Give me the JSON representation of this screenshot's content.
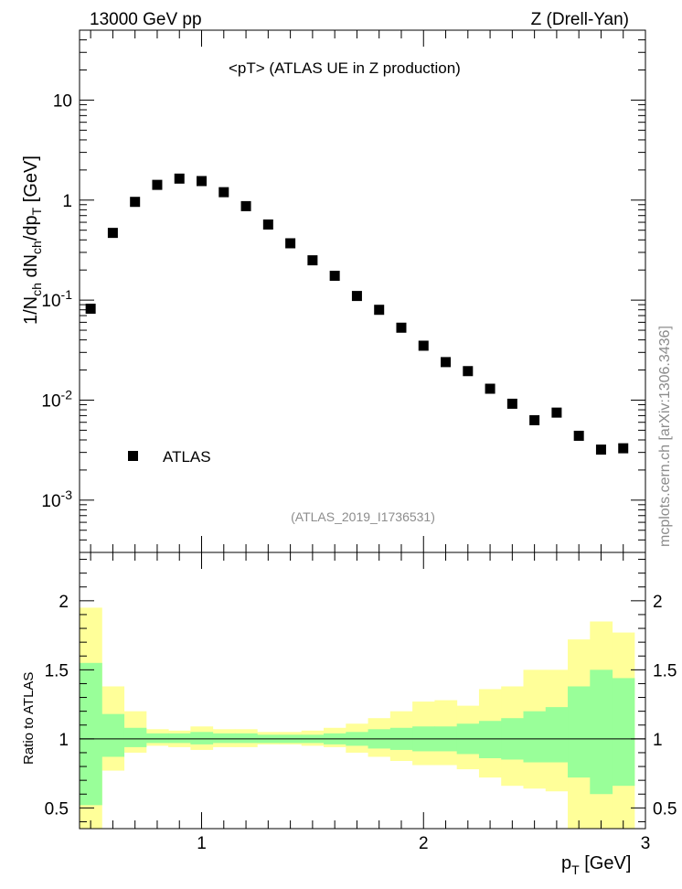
{
  "header": {
    "left": "13000 GeV pp",
    "right": "Z (Drell-Yan)"
  },
  "annotation": "<pT> (ATLAS UE in Z production)",
  "analysis_id": "(ATLAS_2019_I1736531)",
  "side_label": "mcplots.cern.ch [arXiv:1306.3436]",
  "legend": {
    "label": "ATLAS",
    "marker": "filled-square"
  },
  "colors": {
    "band_inner": "#99ff99",
    "band_outer": "#ffff99",
    "marker": "#000000"
  },
  "chart_data": [
    {
      "type": "scatter",
      "ylabel": "1/N_ch dN_ch/dp_T [GeV]",
      "xlabel": "p_T [GeV]",
      "yscale": "log",
      "xlim": [
        0.45,
        3.0
      ],
      "ylim": [
        0.0003,
        50
      ],
      "x_ticks": [
        "1",
        "2",
        "3"
      ],
      "y_ticks": [
        "10^-3",
        "10^-2",
        "10^-1",
        "1",
        "10"
      ],
      "legend_position": "bottom-left",
      "series": [
        {
          "name": "ATLAS",
          "x": [
            0.5,
            0.6,
            0.7,
            0.8,
            0.9,
            1.0,
            1.1,
            1.2,
            1.3,
            1.4,
            1.5,
            1.6,
            1.7,
            1.8,
            1.9,
            2.0,
            2.1,
            2.2,
            2.3,
            2.4,
            2.5,
            2.6,
            2.7,
            2.8,
            2.9
          ],
          "y": [
            0.082,
            0.47,
            0.96,
            1.42,
            1.64,
            1.55,
            1.2,
            0.87,
            0.57,
            0.37,
            0.25,
            0.175,
            0.11,
            0.08,
            0.053,
            0.035,
            0.024,
            0.0195,
            0.013,
            0.0092,
            0.0063,
            0.0075,
            0.0044,
            0.0032,
            0.0033
          ]
        }
      ]
    },
    {
      "type": "area",
      "ylabel": "Ratio to ATLAS",
      "xlabel": "p_T [GeV]",
      "xlim": [
        0.45,
        3.0
      ],
      "ylim": [
        0.35,
        2.35
      ],
      "y_ticks": [
        "0.5",
        "1",
        "1.5",
        "2"
      ],
      "bin_edges": [
        0.45,
        0.55,
        0.65,
        0.75,
        0.85,
        0.95,
        1.05,
        1.15,
        1.25,
        1.35,
        1.45,
        1.55,
        1.65,
        1.75,
        1.85,
        1.95,
        2.05,
        2.15,
        2.25,
        2.35,
        2.45,
        2.55,
        2.65,
        2.75,
        2.85,
        2.95
      ],
      "series": [
        {
          "name": "inner_hi",
          "values": [
            1.55,
            1.18,
            1.08,
            1.04,
            1.04,
            1.05,
            1.04,
            1.04,
            1.03,
            1.03,
            1.03,
            1.04,
            1.05,
            1.07,
            1.08,
            1.09,
            1.09,
            1.11,
            1.13,
            1.15,
            1.2,
            1.23,
            1.38,
            1.5,
            1.44
          ]
        },
        {
          "name": "inner_lo",
          "values": [
            0.52,
            0.87,
            0.94,
            0.97,
            0.97,
            0.96,
            0.97,
            0.97,
            0.97,
            0.97,
            0.97,
            0.96,
            0.95,
            0.93,
            0.92,
            0.91,
            0.91,
            0.89,
            0.86,
            0.85,
            0.83,
            0.83,
            0.72,
            0.6,
            0.66
          ]
        },
        {
          "name": "outer_hi",
          "values": [
            1.95,
            1.38,
            1.2,
            1.07,
            1.06,
            1.09,
            1.07,
            1.07,
            1.05,
            1.05,
            1.06,
            1.08,
            1.11,
            1.15,
            1.2,
            1.27,
            1.28,
            1.24,
            1.36,
            1.38,
            1.5,
            1.5,
            1.72,
            1.85,
            1.77
          ]
        },
        {
          "name": "outer_lo",
          "values": [
            0.35,
            0.77,
            0.9,
            0.95,
            0.94,
            0.92,
            0.94,
            0.94,
            0.96,
            0.96,
            0.95,
            0.94,
            0.9,
            0.87,
            0.84,
            0.81,
            0.81,
            0.78,
            0.72,
            0.66,
            0.64,
            0.62,
            0.35,
            0.35,
            0.35
          ]
        }
      ]
    }
  ]
}
